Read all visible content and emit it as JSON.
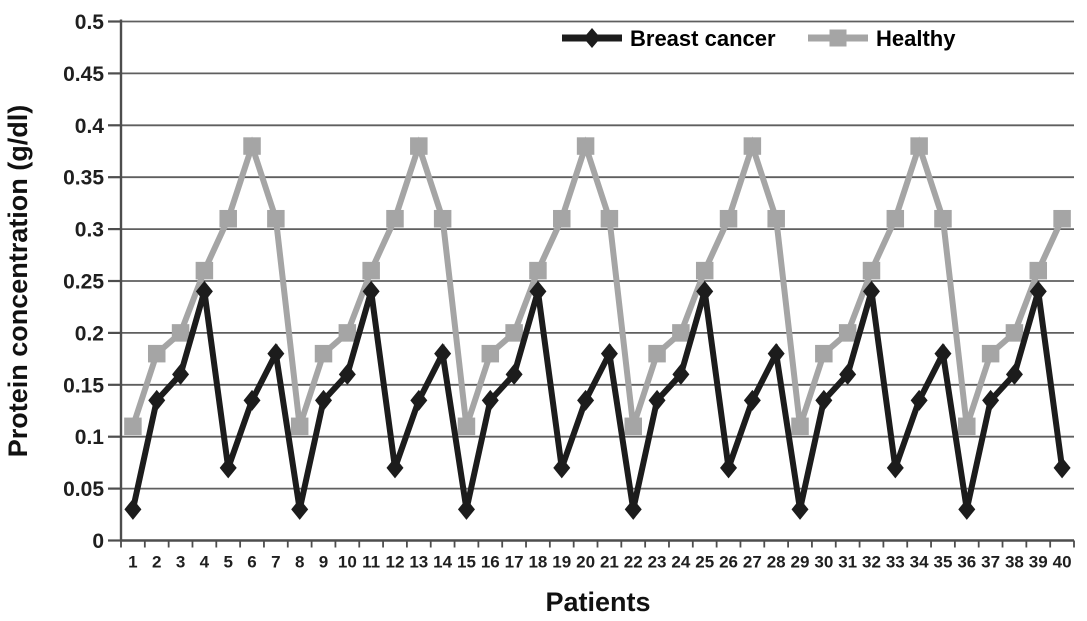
{
  "figure": {
    "background": "#ffffff"
  },
  "chart_data": {
    "type": "line",
    "title": "",
    "xlabel": "Patients",
    "ylabel": "Protein concentration (g/dl)",
    "x": [
      1,
      2,
      3,
      4,
      5,
      6,
      7,
      8,
      9,
      10,
      11,
      12,
      13,
      14,
      15,
      16,
      17,
      18,
      19,
      20,
      21,
      22,
      23,
      24,
      25,
      26,
      27,
      28,
      29,
      30,
      31,
      32,
      33,
      34,
      35,
      36,
      37,
      38,
      39,
      40
    ],
    "series": [
      {
        "name": "Breast cancer",
        "color": "#1c1c1c",
        "marker": "diamond",
        "values": [
          0.03,
          0.135,
          0.16,
          0.24,
          0.07,
          0.135,
          0.18,
          0.03,
          0.135,
          0.16,
          0.24,
          0.07,
          0.135,
          0.18,
          0.03,
          0.135,
          0.16,
          0.24,
          0.07,
          0.135,
          0.18,
          0.03,
          0.135,
          0.16,
          0.24,
          0.07,
          0.135,
          0.18,
          0.03,
          0.135,
          0.16,
          0.24,
          0.07,
          0.135,
          0.18,
          0.03,
          0.135,
          0.16,
          0.24,
          0.07
        ]
      },
      {
        "name": "Healthy",
        "color": "#a5a5a5",
        "marker": "square",
        "values": [
          0.11,
          0.18,
          0.2,
          0.26,
          0.31,
          0.38,
          0.31,
          0.11,
          0.18,
          0.2,
          0.26,
          0.31,
          0.38,
          0.31,
          0.11,
          0.18,
          0.2,
          0.26,
          0.31,
          0.38,
          0.31,
          0.11,
          0.18,
          0.2,
          0.26,
          0.31,
          0.38,
          0.31,
          0.11,
          0.18,
          0.2,
          0.26,
          0.31,
          0.38,
          0.31,
          0.11,
          0.18,
          0.2,
          0.26,
          0.31
        ]
      }
    ],
    "ylim": [
      0,
      0.5
    ],
    "ytick_step": 0.05,
    "ytick_labels": [
      "0",
      "0.05",
      "0.1",
      "0.15",
      "0.2",
      "0.25",
      "0.3",
      "0.35",
      "0.4",
      "0.45",
      "0.5"
    ],
    "grid": "horizontal",
    "legend_position": "top-inside",
    "gridline_color": "#5f5f5f",
    "axis_color": "#4d4d4d",
    "text_color": "#1f1f1f"
  },
  "legend": {
    "items": [
      {
        "label": "Breast cancer",
        "marker": "diamond",
        "color": "#1c1c1c"
      },
      {
        "label": "Healthy",
        "marker": "square",
        "color": "#a5a5a5"
      }
    ]
  }
}
